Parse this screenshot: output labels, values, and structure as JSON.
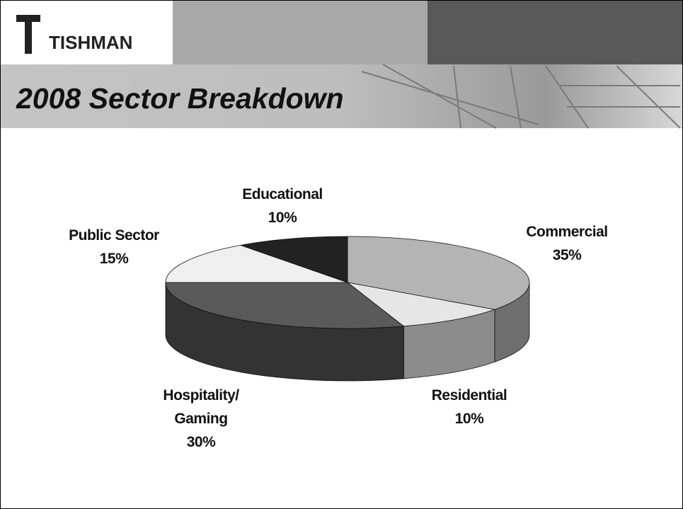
{
  "header": {
    "logo": "TISHMAN"
  },
  "chart_data": {
    "type": "pie",
    "title": "2008 Sector Breakdown",
    "categories": [
      "Commercial",
      "Residential",
      "Hospitality/ Gaming",
      "Public Sector",
      "Educational"
    ],
    "values": [
      35,
      10,
      30,
      15,
      10
    ],
    "value_labels": [
      "35%",
      "10%",
      "30%",
      "15%",
      "10%"
    ],
    "colors": [
      "#b4b4b4",
      "#e6e6e6",
      "#5a5a5a",
      "#efefef",
      "#222222"
    ],
    "side_colors": [
      "#6e6e6e",
      "#8c8c8c",
      "#333333",
      "#9a9a9a",
      "#151515"
    ],
    "start_angle": 0,
    "direction": "clockwise",
    "three_d": true
  }
}
